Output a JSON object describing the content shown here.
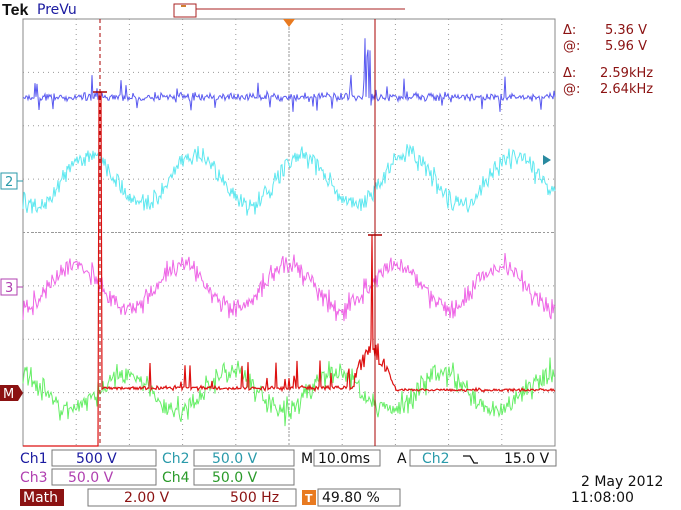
{
  "header": {
    "brand": "Tek",
    "mode": "PreVu"
  },
  "cursor_readouts": {
    "voltage_delta_symbol": "Δ:",
    "voltage_delta": "5.36 V",
    "voltage_at_symbol": "@:",
    "voltage_at": "5.96 V",
    "freq_delta_symbol": "Δ:",
    "freq_delta": "2.59kHz",
    "freq_at_symbol": "@:",
    "freq_at": "2.64kHz"
  },
  "channel_markers": {
    "ch2": "2",
    "ch3": "3",
    "math": "M"
  },
  "status": {
    "ch1": {
      "label": "Ch1",
      "scale": "500 V"
    },
    "ch2": {
      "label": "Ch2",
      "scale": "50.0 V"
    },
    "ch3": {
      "label": "Ch3",
      "scale": "50.0 V"
    },
    "ch4": {
      "label": "Ch4",
      "scale": "50.0 V"
    },
    "timebase_label": "M",
    "timebase": "10.0ms",
    "trigger_label": "A",
    "trigger_source": "Ch2",
    "trigger_slope_icon": "falling-edge-icon",
    "trigger_level": "15.0 V",
    "math": {
      "label": "Math",
      "scale": "2.00 V",
      "freq": "500 Hz"
    },
    "trigger_pos_icon": "T",
    "trigger_pos": "49.80 %",
    "date": "2 May 2012",
    "time": "11:08:00"
  },
  "colors": {
    "ch1": "#5a5af0",
    "ch2": "#5fe8f0",
    "ch3": "#ee66e6",
    "ch4": "#66ee66",
    "math": "#dd1111",
    "cursor": "#aa0000",
    "grid": "#999999",
    "label_blue": "#1a1aa0",
    "label_red": "#8b1212"
  }
}
